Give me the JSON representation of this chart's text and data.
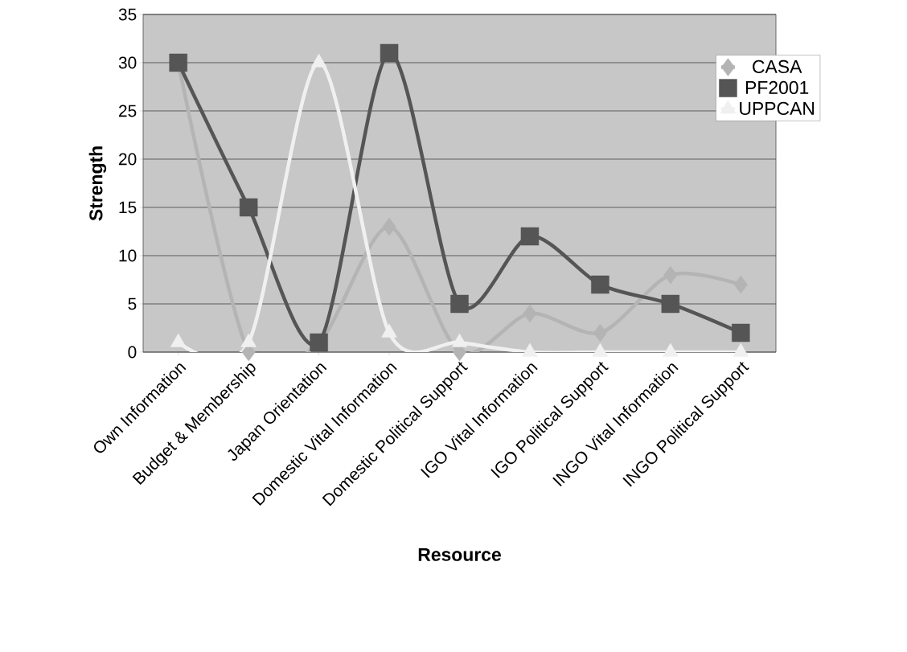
{
  "chart_data": {
    "type": "line",
    "xlabel": "Resource",
    "ylabel": "Strength",
    "categories": [
      "Own Information",
      "Budget & Membership",
      "Japan Orientation",
      "Domestic Vital Information",
      "Domestic  Political Support",
      "IGO Vital Information",
      "IGO Political Support",
      "INGO Vital Information",
      "INGO Political Support"
    ],
    "series": [
      {
        "name": "CASA",
        "color": "#b4b4b4",
        "marker": "diamond",
        "values": [
          30,
          0,
          1,
          13,
          0,
          4,
          2,
          8,
          7
        ]
      },
      {
        "name": "PF2001",
        "color": "#555555",
        "marker": "square",
        "values": [
          30,
          15,
          1,
          31,
          5,
          12,
          7,
          5,
          2
        ]
      },
      {
        "name": "UPPCAN",
        "color": "#f0f0f0",
        "marker": "triangle",
        "values": [
          1,
          1,
          30,
          2,
          1,
          0,
          0,
          0,
          0
        ]
      }
    ],
    "ylim": [
      0,
      35
    ],
    "yticks": [
      0,
      5,
      10,
      15,
      20,
      25,
      30,
      35
    ],
    "grid": "y",
    "legend": "top right",
    "line_style": "solid"
  }
}
